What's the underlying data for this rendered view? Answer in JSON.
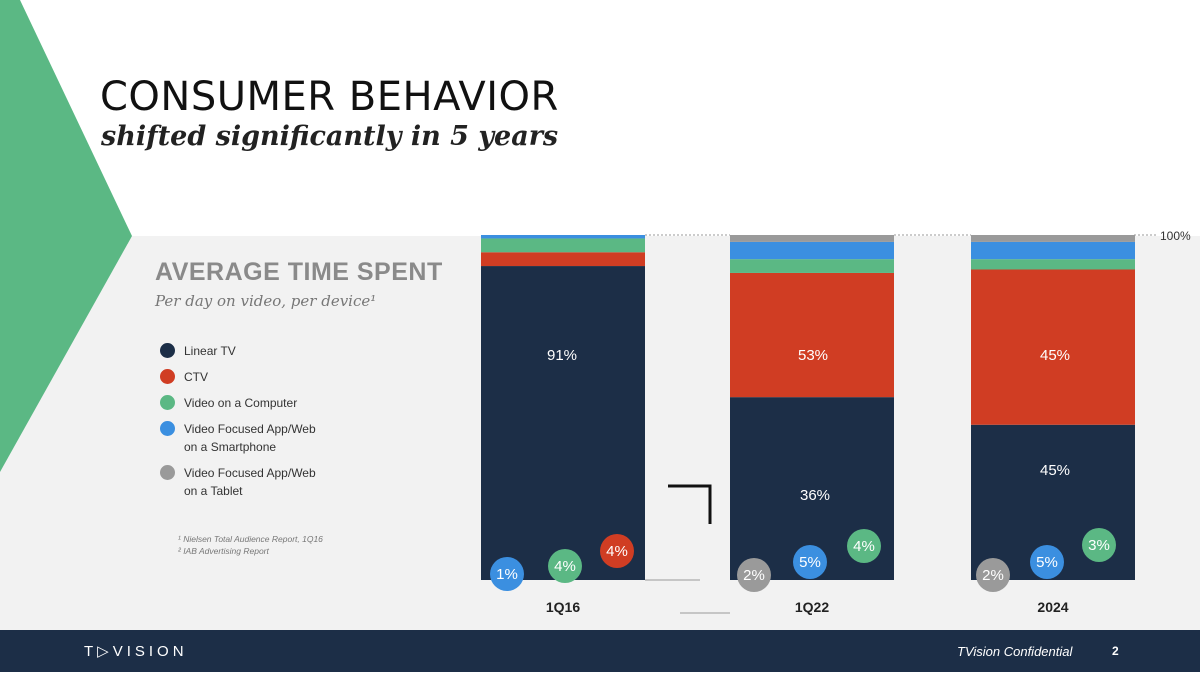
{
  "header": {
    "title": "CONSUMER BEHAVIOR",
    "subtitle": "shifted significantly in 5 years"
  },
  "chart_data": {
    "type": "bar",
    "stacked": true,
    "title": "AVERAGE TIME SPENT",
    "subtitle": "Per day on video, per device¹",
    "categories": [
      "1Q16",
      "1Q22",
      "2024"
    ],
    "series": [
      {
        "name": "Linear TV",
        "color": "#1c2e47",
        "values": [
          91,
          53,
          45
        ]
      },
      {
        "name": "CTV",
        "color": "#d03d23",
        "values": [
          4,
          36,
          45
        ]
      },
      {
        "name": "Video on a Computer",
        "color": "#5bb884",
        "values": [
          4,
          4,
          3
        ]
      },
      {
        "name": "Video Focused App/Web on a Smartphone",
        "color": "#3b8fe0",
        "values": [
          1,
          5,
          5
        ]
      },
      {
        "name": "Video Focused App/Web on a Tablet",
        "color": "#9a9a9a",
        "values": [
          0,
          2,
          2
        ]
      }
    ],
    "data_labels": [
      {
        "category": "1Q16",
        "series": "Linear TV",
        "text": "91%"
      },
      {
        "category": "1Q16",
        "series": "CTV",
        "text": "4%"
      },
      {
        "category": "1Q16",
        "series": "Video on a Computer",
        "text": "4%"
      },
      {
        "category": "1Q16",
        "series": "Video Focused App/Web on a Smartphone",
        "text": "1%"
      },
      {
        "category": "1Q22",
        "series": "Linear TV",
        "text": "53%"
      },
      {
        "category": "1Q22",
        "series": "CTV",
        "text": "36%"
      },
      {
        "category": "1Q22",
        "series": "Video on a Computer",
        "text": "4%"
      },
      {
        "category": "1Q22",
        "series": "Video Focused App/Web on a Smartphone",
        "text": "5%"
      },
      {
        "category": "1Q22",
        "series": "Video Focused App/Web on a Tablet",
        "text": "2%"
      },
      {
        "category": "2024",
        "series": "Linear TV",
        "text": "45%"
      },
      {
        "category": "2024",
        "series": "CTV",
        "text": "45%"
      },
      {
        "category": "2024",
        "series": "Video on a Computer",
        "text": "3%"
      },
      {
        "category": "2024",
        "series": "Video Focused App/Web on a Smartphone",
        "text": "5%"
      },
      {
        "category": "2024",
        "series": "Video Focused App/Web on a Tablet",
        "text": "2%"
      }
    ],
    "ylim": [
      0,
      100
    ],
    "top_marker": "100%",
    "legend_position": "left",
    "grid": false
  },
  "legend": {
    "items": [
      {
        "label_lines": [
          "Linear TV"
        ],
        "color": "#1c2e47"
      },
      {
        "label_lines": [
          "CTV"
        ],
        "color": "#d03d23"
      },
      {
        "label_lines": [
          "Video on a Computer"
        ],
        "color": "#5bb884"
      },
      {
        "label_lines": [
          "Video Focused App/Web",
          "on a Smartphone"
        ],
        "color": "#3b8fe0"
      },
      {
        "label_lines": [
          "Video Focused App/Web",
          "on a Tablet"
        ],
        "color": "#9a9a9a"
      }
    ]
  },
  "footnotes": [
    "¹ Nielsen Total Audience Report, 1Q16",
    "² IAB Advertising Report"
  ],
  "footer": {
    "logo": "T▷VISION",
    "confidential": "TVision Confidential",
    "page": "2"
  },
  "colors": {
    "accent_green": "#5bb884",
    "navy": "#1c2e47",
    "red": "#d03d23",
    "blue": "#3b8fe0",
    "gray": "#9a9a9a",
    "panel": "#f2f2f2"
  }
}
